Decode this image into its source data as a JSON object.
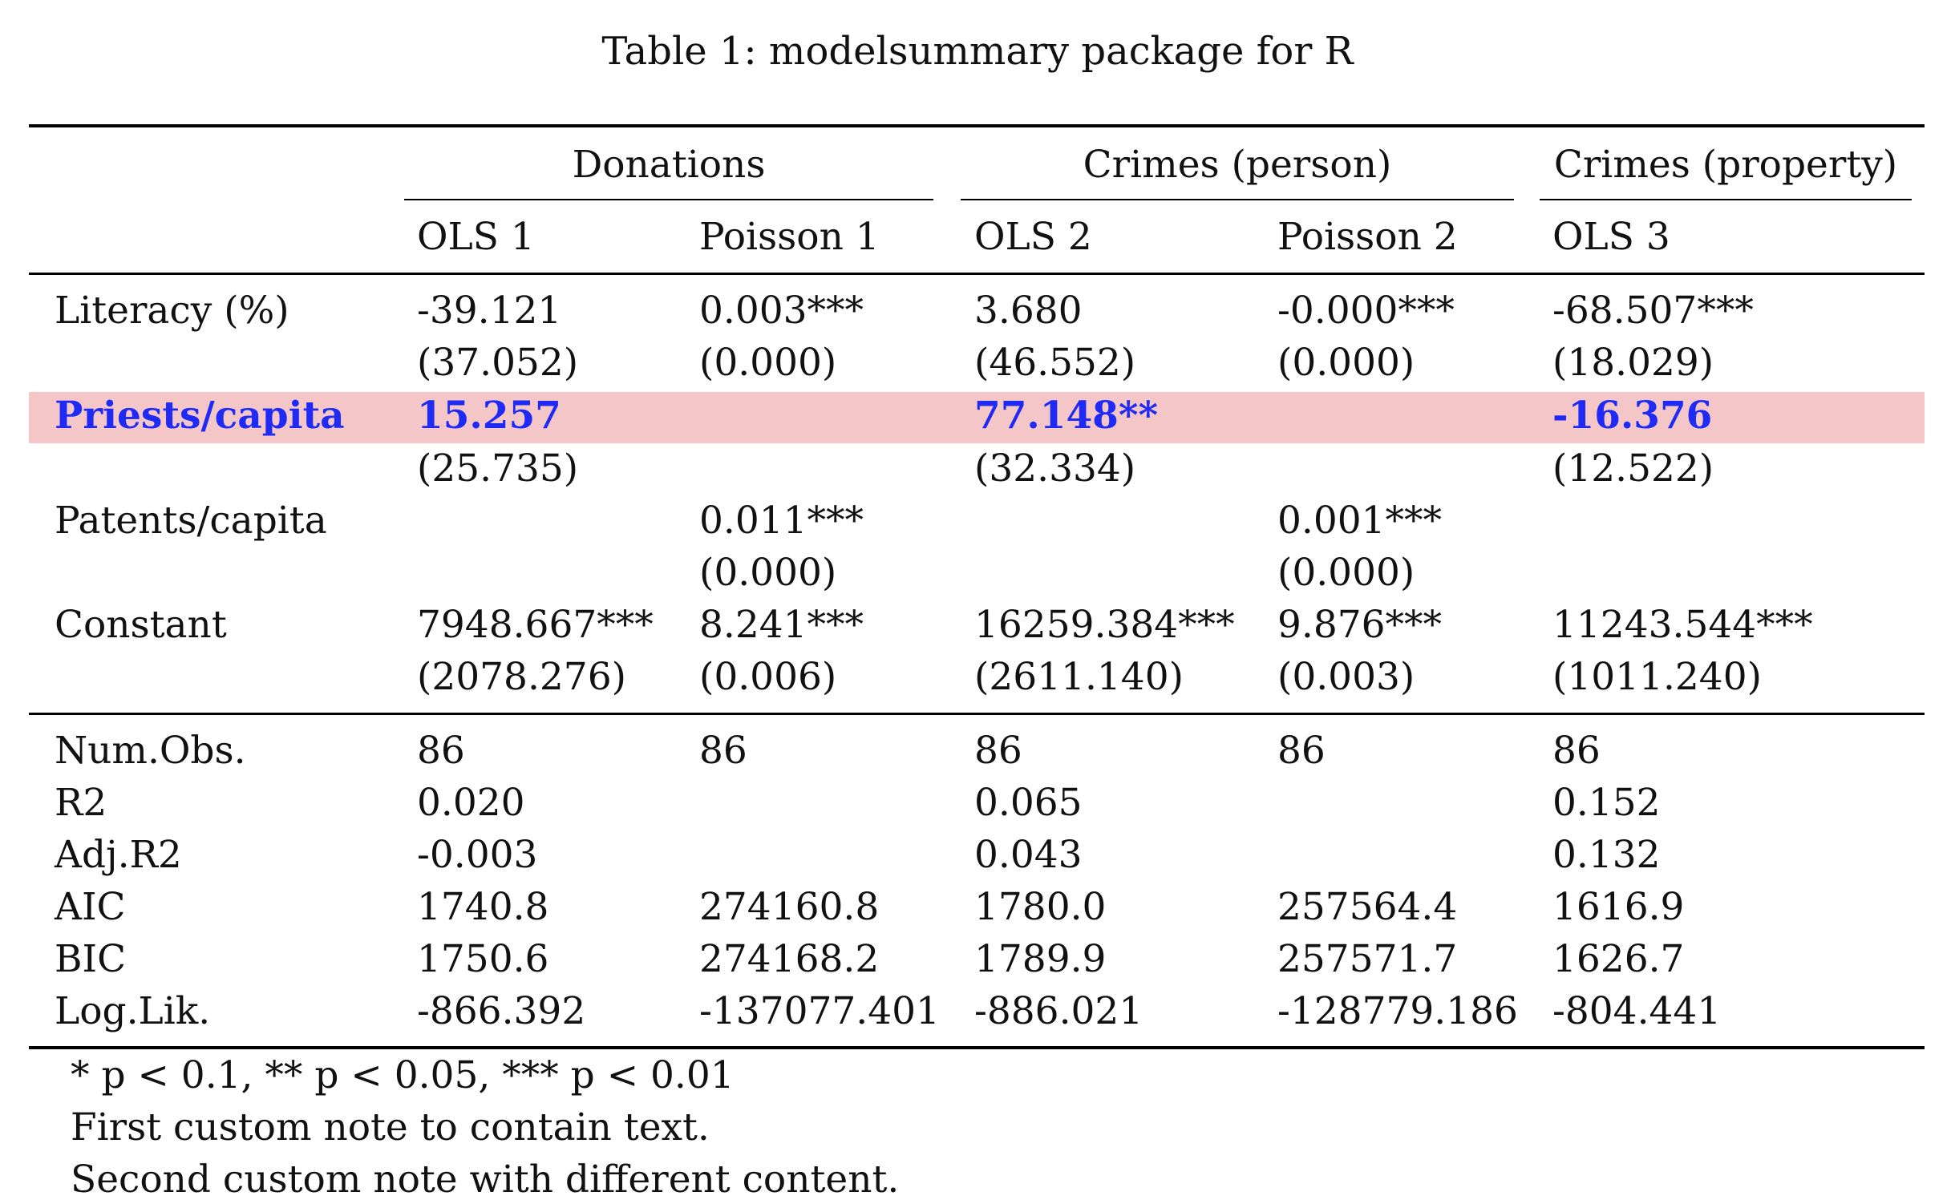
{
  "caption": "Table 1: modelsummary package for R",
  "groups": [
    "Donations",
    "Crimes (person)",
    "Crimes (property)"
  ],
  "models": [
    "OLS 1",
    "Poisson 1",
    "OLS 2",
    "Poisson 2",
    "OLS 3"
  ],
  "coefficients": [
    {
      "label": "Literacy (%)",
      "highlight": false,
      "estimates": [
        "-39.121",
        "0.003***",
        "3.680",
        "-0.000***",
        "-68.507***"
      ],
      "std_errors": [
        "(37.052)",
        "(0.000)",
        "(46.552)",
        "(0.000)",
        "(18.029)"
      ]
    },
    {
      "label": "Priests/capita",
      "highlight": true,
      "estimates": [
        "15.257",
        "",
        "77.148**",
        "",
        "-16.376"
      ],
      "std_errors": [
        "(25.735)",
        "",
        "(32.334)",
        "",
        "(12.522)"
      ]
    },
    {
      "label": "Patents/capita",
      "highlight": false,
      "estimates": [
        "",
        "0.011***",
        "",
        "0.001***",
        ""
      ],
      "std_errors": [
        "",
        "(0.000)",
        "",
        "(0.000)",
        ""
      ]
    },
    {
      "label": "Constant",
      "highlight": false,
      "estimates": [
        "7948.667***",
        "8.241***",
        "16259.384***",
        "9.876***",
        "11243.544***"
      ],
      "std_errors": [
        "(2078.276)",
        "(0.006)",
        "(2611.140)",
        "(0.003)",
        "(1011.240)"
      ]
    }
  ],
  "gof": [
    {
      "label": "Num.Obs.",
      "values": [
        "86",
        "86",
        "86",
        "86",
        "86"
      ]
    },
    {
      "label": "R2",
      "values": [
        "0.020",
        "",
        "0.065",
        "",
        "0.152"
      ]
    },
    {
      "label": "Adj.R2",
      "values": [
        "-0.003",
        "",
        "0.043",
        "",
        "0.132"
      ]
    },
    {
      "label": "AIC",
      "values": [
        "1740.8",
        "274160.8",
        "1780.0",
        "257564.4",
        "1616.9"
      ]
    },
    {
      "label": "BIC",
      "values": [
        "1750.6",
        "274168.2",
        "1789.9",
        "257571.7",
        "1626.7"
      ]
    },
    {
      "label": "Log.Lik.",
      "values": [
        "-866.392",
        "-137077.401",
        "-886.021",
        "-128779.186",
        "-804.441"
      ]
    }
  ],
  "notes": [
    "* p < 0.1, ** p < 0.05, *** p < 0.01",
    "First custom note to contain text.",
    "Second custom note with different content."
  ],
  "colors": {
    "highlight_background": "#f5c6c7",
    "highlight_text": "#1f2bf5"
  }
}
